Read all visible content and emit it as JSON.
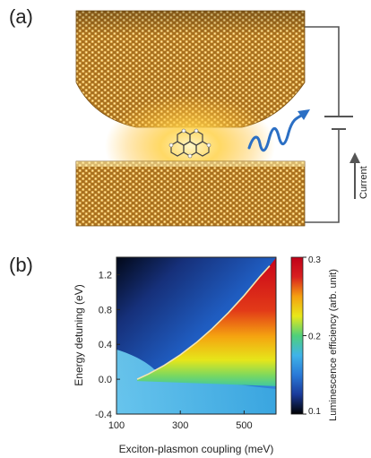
{
  "panel_a": {
    "label": "(a)",
    "current_label": "Current",
    "colors": {
      "metal": "#c8902e",
      "glow": "#ffd24a",
      "photon": "#2b6fc4",
      "circuit": "#555555"
    },
    "icons": [
      "tip-electrode",
      "molecule",
      "substrate-electrode",
      "photon-wave-icon",
      "battery-icon",
      "current-arrow-icon"
    ]
  },
  "panel_b": {
    "label": "(b)",
    "colorbar": {
      "label": "Luminescence efficiency (arb. unit)",
      "ticks": [
        "0.3",
        "0.2",
        "0.1"
      ],
      "range": [
        0.1,
        0.3
      ],
      "colors": [
        "#000000",
        "#1a3a9a",
        "#2a7ad8",
        "#3fb3e8",
        "#4fd07a",
        "#e8e81a",
        "#f5a010",
        "#d82020",
        "#c00018"
      ]
    }
  },
  "chart_data": {
    "type": "heatmap",
    "xlabel": "Exciton-plasmon coupling (meV)",
    "ylabel": "Energy detuning (eV)",
    "xlim": [
      100,
      600
    ],
    "ylim": [
      -0.4,
      1.4
    ],
    "x_ticks": [
      "100",
      "300",
      "500"
    ],
    "y_ticks": [
      "1.2",
      "0.8",
      "0.4",
      "0.0",
      "-0.4"
    ],
    "boundary_curve": {
      "x": [
        165,
        200,
        250,
        300,
        350,
        400,
        450,
        500,
        550,
        580
      ],
      "y": [
        0.0,
        0.06,
        0.16,
        0.28,
        0.42,
        0.58,
        0.76,
        0.96,
        1.18,
        1.3
      ]
    },
    "colorbar_range": [
      0.1,
      0.3
    ]
  }
}
